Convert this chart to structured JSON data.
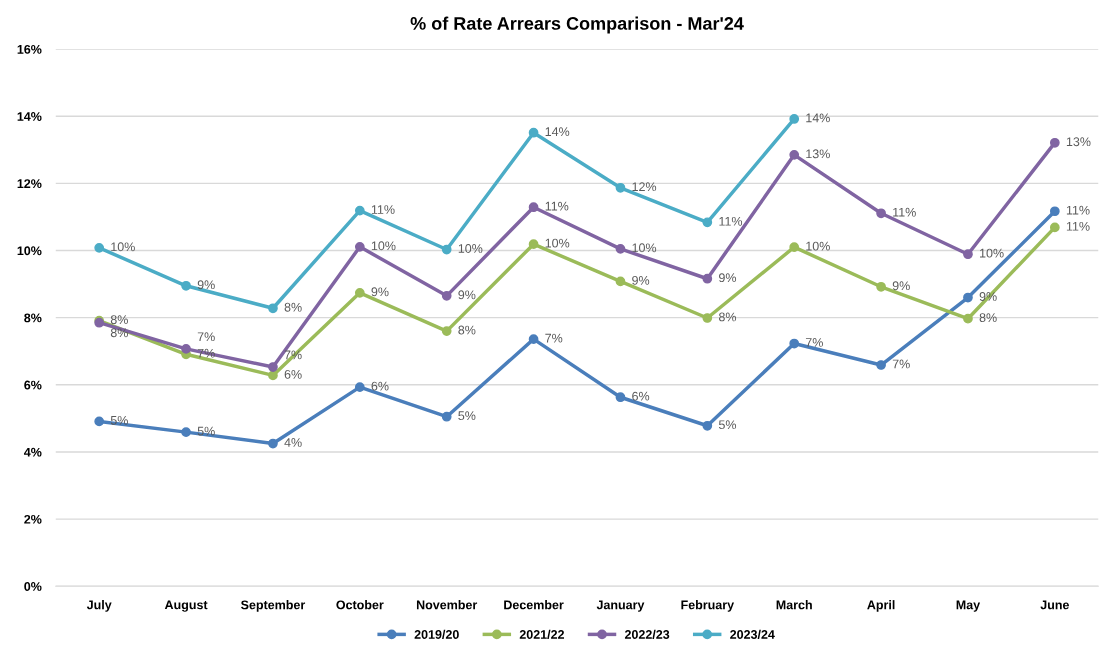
{
  "chart_data": {
    "type": "line",
    "title": "% of Rate Arrears Comparison - Mar'24",
    "categories": [
      "July",
      "August",
      "September",
      "October",
      "November",
      "December",
      "January",
      "February",
      "March",
      "April",
      "May",
      "June"
    ],
    "series": [
      {
        "name": "2019/20",
        "color": "#4a7ebb",
        "values": [
          4.91,
          4.59,
          4.25,
          5.93,
          5.05,
          7.36,
          5.63,
          4.78,
          7.23,
          6.59,
          8.6,
          11.17
        ],
        "value_labels": [
          "5%",
          "5%",
          "4%",
          "6%",
          "5%",
          "7%",
          "6%",
          "5%",
          "7%",
          "7%",
          "9%",
          "11%"
        ]
      },
      {
        "name": "2021/22",
        "color": "#9bbb59",
        "values": [
          7.91,
          6.91,
          6.28,
          8.74,
          7.6,
          10.19,
          9.08,
          7.99,
          10.1,
          8.92,
          7.97,
          10.69
        ],
        "value_labels": [
          "8%",
          "7%",
          "6%",
          "9%",
          "8%",
          "10%",
          "9%",
          "8%",
          "10%",
          "9%",
          "8%",
          "11%"
        ]
      },
      {
        "name": "2022/23",
        "color": "#8064a2",
        "values": [
          7.85,
          7.07,
          6.53,
          10.11,
          8.65,
          11.29,
          10.05,
          9.16,
          12.85,
          11.11,
          9.89,
          13.21
        ],
        "value_labels": [
          "8%",
          "7%",
          "7%",
          "10%",
          "9%",
          "11%",
          "10%",
          "9%",
          "13%",
          "11%",
          "10%",
          "13%"
        ]
      },
      {
        "name": "2023/24",
        "color": "#4bacc6",
        "values": [
          10.08,
          8.95,
          8.28,
          11.19,
          10.03,
          13.51,
          11.87,
          10.84,
          13.92,
          null,
          null,
          null
        ],
        "value_labels": [
          "10%",
          "9%",
          "8%",
          "11%",
          "10%",
          "14%",
          "12%",
          "11%",
          "14%",
          null,
          null,
          null
        ]
      }
    ],
    "ylim": [
      0,
      16
    ],
    "yticks": [
      {
        "value": 0,
        "label": "0%"
      },
      {
        "value": 2,
        "label": "2%"
      },
      {
        "value": 4,
        "label": "4%"
      },
      {
        "value": 6,
        "label": "6%"
      },
      {
        "value": 8,
        "label": "8%"
      },
      {
        "value": 10,
        "label": "10%"
      },
      {
        "value": 12,
        "label": "12%"
      },
      {
        "value": 14,
        "label": "14%"
      },
      {
        "value": 16,
        "label": "16%"
      }
    ],
    "grid": "y",
    "legend": "bottom",
    "marker": "circle",
    "line_style": "solid"
  }
}
